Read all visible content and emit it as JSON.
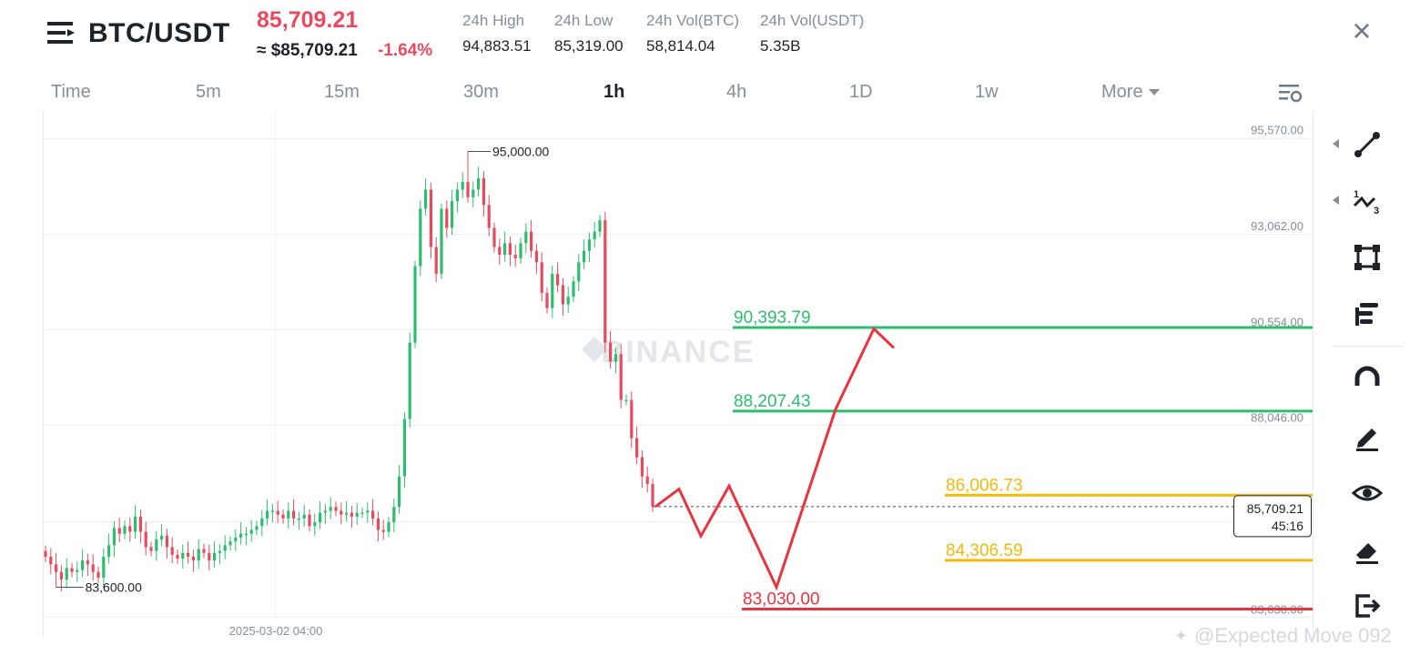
{
  "header": {
    "pair": "BTC/USDT",
    "last_price": "85,709.21",
    "approx_price": "≈ $85,709.21",
    "change_pct": "-1.64%",
    "stats": [
      {
        "label": "24h High",
        "value": "94,883.51"
      },
      {
        "label": "24h Low",
        "value": "85,319.00"
      },
      {
        "label": "24h Vol(BTC)",
        "value": "58,814.04"
      },
      {
        "label": "24h Vol(USDT)",
        "value": "5.35B"
      }
    ]
  },
  "timeframes": [
    {
      "label": "Time",
      "active": false
    },
    {
      "label": "5m",
      "active": false
    },
    {
      "label": "15m",
      "active": false
    },
    {
      "label": "30m",
      "active": false
    },
    {
      "label": "1h",
      "active": true
    },
    {
      "label": "4h",
      "active": false
    },
    {
      "label": "1D",
      "active": false
    },
    {
      "label": "1w",
      "active": false
    },
    {
      "label": "More",
      "active": false
    }
  ],
  "chart_data": {
    "type": "candlestick",
    "interval": "1h",
    "y_axis_ticks": [
      95570.0,
      93062.0,
      90554.0,
      88046.0,
      83030.0
    ],
    "y_axis_tick_labels": [
      "95,570.00",
      "93,062.00",
      "90,554.00",
      "88,046.00",
      "83,030.00"
    ],
    "x_axis_tick_label": "2025-03-02 04:00",
    "grid": true,
    "watermark": "BINANCE",
    "high_marker": {
      "value": 95000.0,
      "label": "95,000.00"
    },
    "low_marker": {
      "value": 83600.0,
      "label": "83,600.00"
    },
    "current_price": {
      "value": 85709.21,
      "label": "85,709.21",
      "countdown": "45:16"
    },
    "levels": [
      {
        "value": 90393.79,
        "label": "90,393.79",
        "color": "#2ebd6f"
      },
      {
        "value": 88207.43,
        "label": "88,207.43",
        "color": "#2ebd6f"
      },
      {
        "value": 86006.73,
        "label": "86,006.73",
        "color": "#f0b90b"
      },
      {
        "value": 84306.59,
        "label": "84,306.59",
        "color": "#f0b90b"
      },
      {
        "value": 83030.0,
        "label": "83,030.00",
        "color": "#e8343f"
      }
    ],
    "projection_path": [
      85709,
      86170,
      84940,
      86250,
      83600,
      88260,
      90360,
      89860
    ],
    "closes": [
      84400,
      84200,
      84000,
      83800,
      84100,
      84000,
      84050,
      84300,
      84200,
      84000,
      83850,
      84400,
      84700,
      85150,
      85000,
      85200,
      85050,
      85450,
      85050,
      84650,
      84550,
      84850,
      84950,
      84650,
      84450,
      84350,
      84500,
      84400,
      84300,
      84600,
      84500,
      84300,
      84500,
      84550,
      84700,
      84800,
      84900,
      85000,
      85000,
      85100,
      85200,
      85400,
      85600,
      85600,
      85500,
      85400,
      85600,
      85400,
      85400,
      85500,
      85200,
      85300,
      85550,
      85600,
      85700,
      85600,
      85500,
      85550,
      85450,
      85550,
      85550,
      85600,
      85400,
      85100,
      85050,
      85300,
      85700,
      86500,
      88000,
      90000,
      92000,
      93500,
      94000,
      92500,
      91800,
      93500,
      93000,
      93700,
      94000,
      94200,
      93800,
      94000,
      94300,
      93600,
      93000,
      92500,
      92300,
      92600,
      92300,
      92200,
      92600,
      92900,
      92400,
      92100,
      91300,
      90900,
      91800,
      91500,
      91000,
      91200,
      91600,
      92100,
      92400,
      92700,
      92900,
      93200,
      90000,
      89500,
      89700,
      88500,
      88500,
      87500,
      87000,
      86500,
      86300,
      85709
    ],
    "ohlc_note": "closes estimated from the candlestick series; each candle also has wicks drawn from estimated highs/lows"
  },
  "watermark_credit": "@Expected Move 092",
  "colors": {
    "up": "#2ebd6f",
    "down": "#e84a5f",
    "accent_red": "#e8343f",
    "yellow": "#f0b90b"
  }
}
